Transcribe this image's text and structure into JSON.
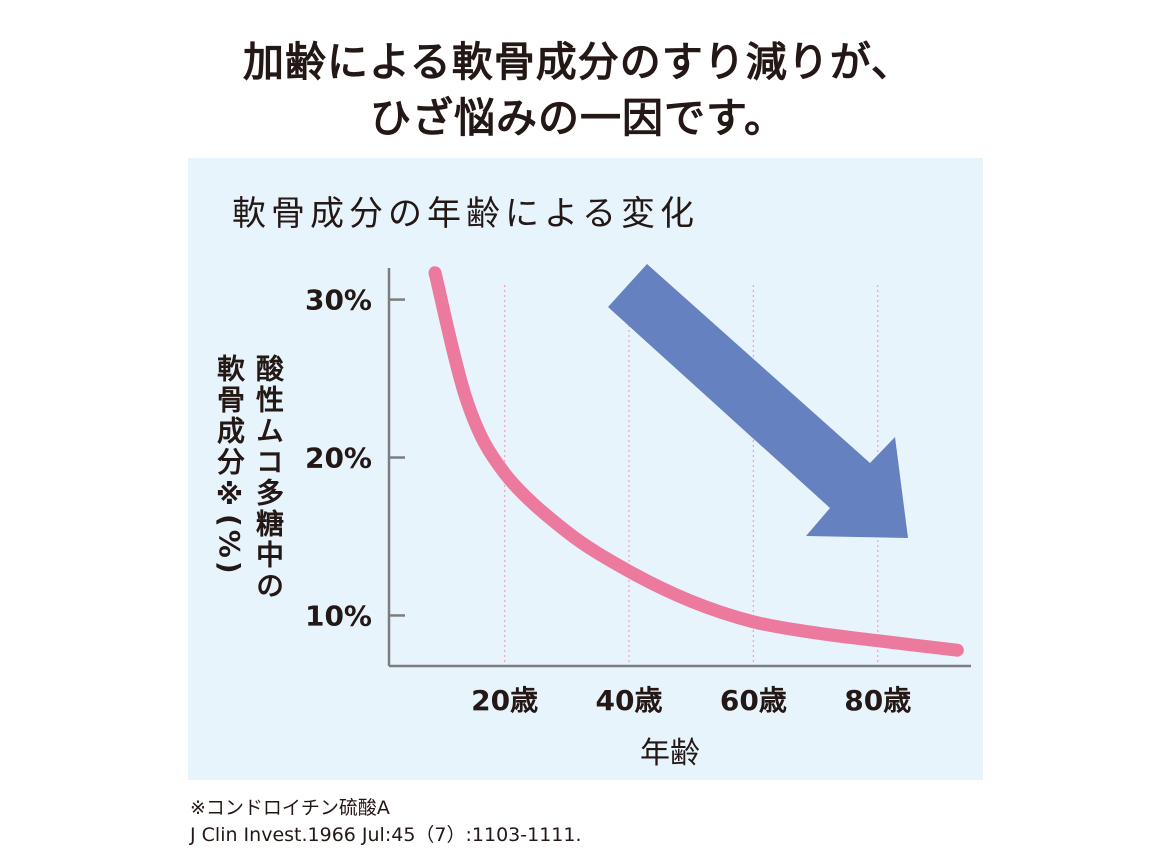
{
  "headline": [
    "加齢による軟骨成分のすり減りが、",
    "ひざ悩みの一因です。"
  ],
  "chart_data": {
    "type": "line",
    "title": "軟骨成分の年齢による変化",
    "xlabel": "年齢",
    "ylabel": [
      "酸性ムコ多糖中の",
      "軟骨成分※(%)"
    ],
    "xlim": [
      1.4,
      95
    ],
    "ylim": [
      6.8,
      32
    ],
    "x_ticks": [
      20,
      40,
      60,
      80
    ],
    "x_tick_labels": [
      "20歳",
      "40歳",
      "60歳",
      "80歳"
    ],
    "y_ticks": [
      10,
      20,
      30
    ],
    "y_tick_labels": [
      "10%",
      "20%",
      "30%"
    ],
    "grid": "vertical dotted at x ticks",
    "legend": "none",
    "annotation": "large downward-right arrow indicating decrease",
    "series": [
      {
        "x": [
          8.8,
          14,
          20,
          30,
          40,
          50,
          60,
          70,
          80,
          92.8
        ],
        "y": [
          31.7,
          23.5,
          19.0,
          15.3,
          12.8,
          10.9,
          9.6,
          8.9,
          8.4,
          7.8
        ]
      }
    ],
    "colors": {
      "line": "#ec7a9f",
      "arrow": "#6581c0",
      "grid": "#f0a8c0",
      "axis": "#7d7d7d",
      "background": "#e8f4fc"
    }
  },
  "footnote": "※コンドロイチン硫酸A",
  "citation": "J Clin Invest.1966 Jul:45（7）:1103-1111."
}
